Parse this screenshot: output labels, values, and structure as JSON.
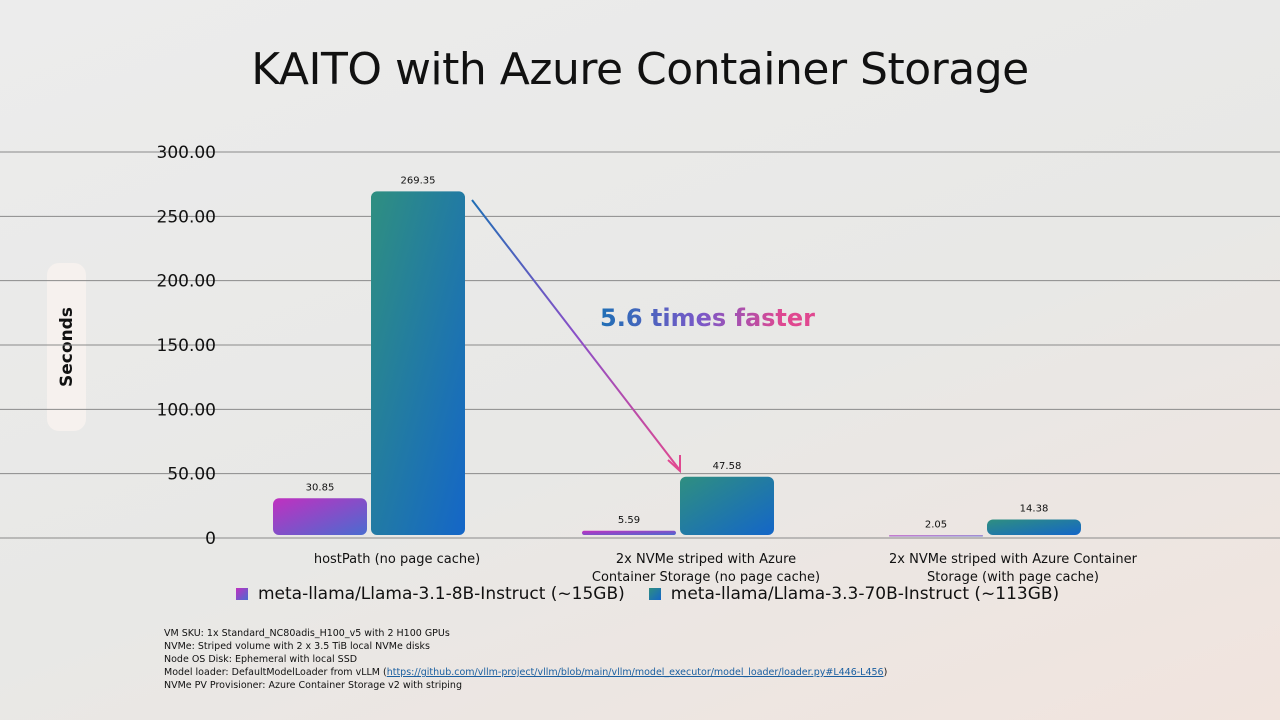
{
  "chart_data": {
    "type": "bar",
    "title": "KAITO with Azure Container Storage",
    "ylabel": "Seconds",
    "xlabel": "",
    "ylim": [
      0,
      300
    ],
    "y_ticks": [
      "0",
      "50.00",
      "100.00",
      "150.00",
      "200.00",
      "250.00",
      "300.00"
    ],
    "categories": [
      [
        "hostPath (no page cache)"
      ],
      [
        "2x NVMe striped with Azure",
        "Container Storage (no page cache)"
      ],
      [
        "2x NVMe striped with Azure Container",
        "Storage (with page cache)"
      ]
    ],
    "series": [
      {
        "name": "meta-llama/Llama-3.1-8B-Instruct (~15GB)",
        "values": [
          30.85,
          5.59,
          2.05
        ],
        "labels": [
          "30.85",
          "5.59",
          "2.05"
        ]
      },
      {
        "name": "meta-llama/Llama-3.3-70B-Instruct (~113GB)",
        "values": [
          269.35,
          47.58,
          14.38
        ],
        "labels": [
          "269.35",
          "47.58",
          "14.38"
        ]
      }
    ],
    "grid": true,
    "legend_position": "bottom",
    "annotation": "5.6 times faster"
  },
  "footnotes": {
    "line1": "VM SKU: 1x Standard_NC80adis_H100_v5 with 2 H100 GPUs",
    "line2": "NVMe: Striped volume with 2 x 3.5 TiB local NVMe disks",
    "line3": "Node OS Disk: Ephemeral with local SSD",
    "line4_prefix": "Model loader: DefaultModelLoader from vLLM (",
    "line4_link": "https://github.com/vllm-project/vllm/blob/main/vllm/model_executor/model_loader/loader.py#L446-L456",
    "line4_suffix": ")",
    "line5": "NVMe PV Provisioner: Azure Container Storage v2 with striping"
  },
  "colors": {
    "series1_start": "#c030c0",
    "series1_end": "#4a6cd0",
    "series2_start": "#2f8f80",
    "series2_end": "#1466c8",
    "annotation_start": "#1f6fb5",
    "annotation_end": "#e04890",
    "gridline": "#8a8a8a"
  }
}
